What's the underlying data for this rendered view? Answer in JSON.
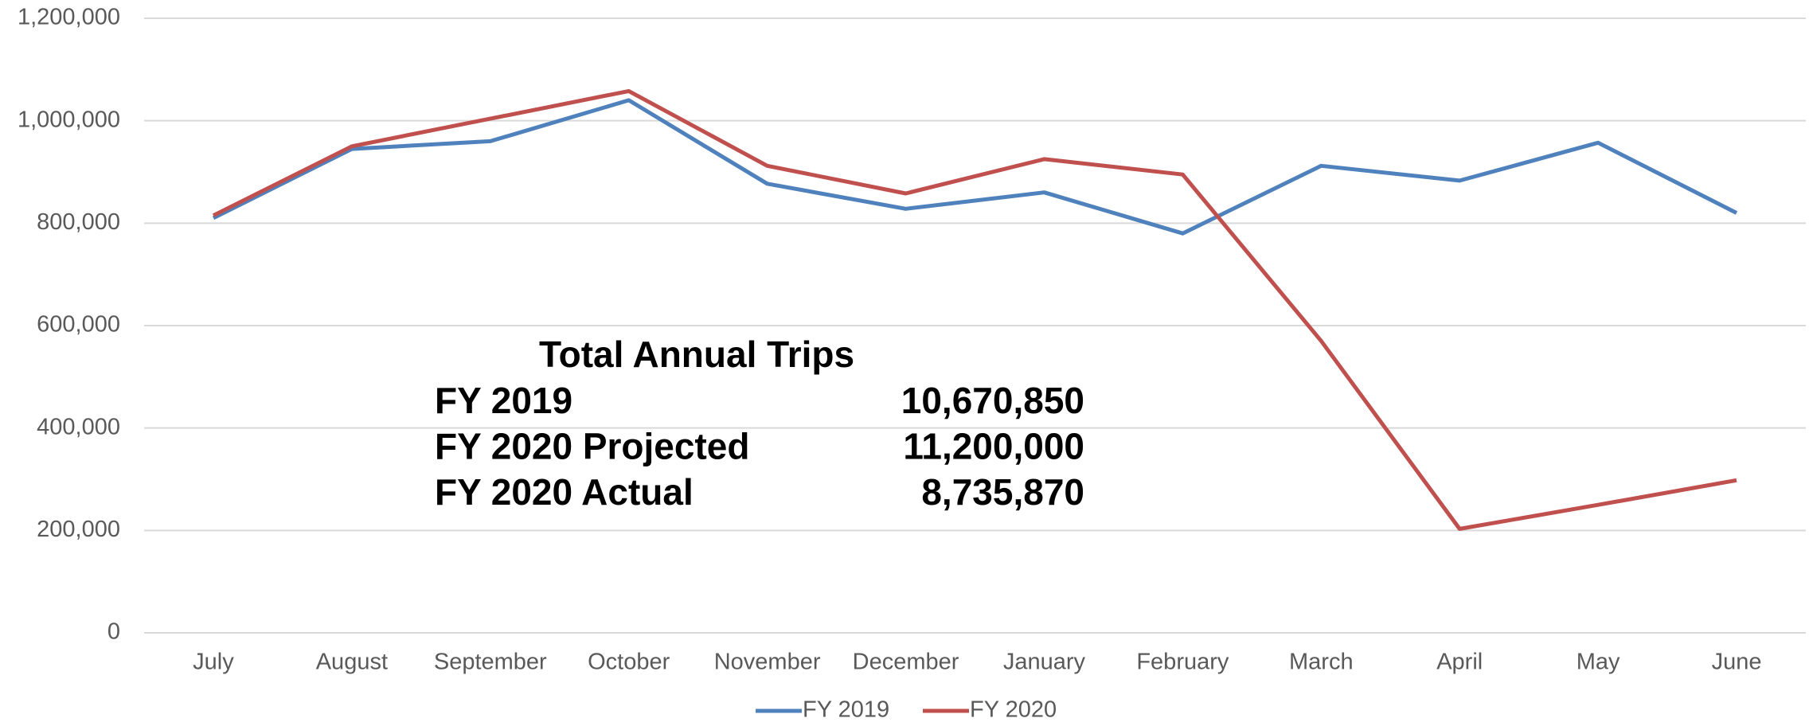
{
  "chart_data": {
    "type": "line",
    "categories": [
      "July",
      "August",
      "September",
      "October",
      "November",
      "December",
      "January",
      "February",
      "March",
      "April",
      "May",
      "June"
    ],
    "series": [
      {
        "name": "FY 2019",
        "color": "#4f81bd",
        "values": [
          810000,
          945000,
          960000,
          1040000,
          877000,
          828000,
          860000,
          780000,
          912000,
          883000,
          957000,
          820000
        ]
      },
      {
        "name": "FY 2020",
        "color": "#c0504d",
        "values": [
          815000,
          950000,
          1004000,
          1058000,
          912000,
          858000,
          925000,
          895000,
          570000,
          203000,
          250000,
          298000
        ]
      }
    ],
    "ylim": [
      0,
      1200000
    ],
    "yticks": [
      0,
      {
        "value": 200000,
        "label": "200,000"
      },
      {
        "value": 400000,
        "label": "400,000"
      },
      {
        "value": 600000,
        "label": "600,000"
      },
      {
        "value": 800000,
        "label": "800,000"
      },
      {
        "value": 1000000,
        "label": "1,000,000"
      },
      {
        "value": 1200000,
        "label": "1,200,000"
      }
    ],
    "grid": true,
    "legend": "bottom",
    "annotation": {
      "title": "Total Annual Trips",
      "rows": [
        [
          "FY 2019",
          "10,670,850"
        ],
        [
          "FY 2020 Projected",
          "11,200,000"
        ],
        [
          "FY 2020 Actual",
          "8,735,870"
        ]
      ]
    }
  }
}
